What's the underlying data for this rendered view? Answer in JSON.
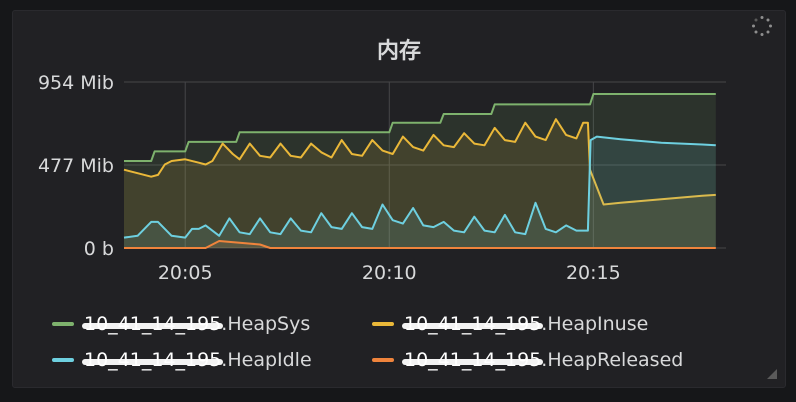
{
  "panel": {
    "title": "内存",
    "loading_icon": "spinner-icon",
    "resize_icon": "resize-handle-icon"
  },
  "chart_data": {
    "type": "area",
    "title": "内存",
    "xlabel": "",
    "ylabel": "",
    "x_ticks": [
      "20:05",
      "20:10",
      "20:15"
    ],
    "y_ticks": [
      "954 Mib",
      "477 Mib",
      "0 b"
    ],
    "y_tick_values": [
      954,
      477,
      0
    ],
    "ylim": [
      0,
      954
    ],
    "xlim": [
      "20:03:30",
      "20:18:15"
    ],
    "grid": true,
    "legend_position": "bottom",
    "series": [
      {
        "name": "HeapSys",
        "host_label": "10_41_14_195",
        "label": ".HeapSys",
        "color": "#7eb26d",
        "x": [
          "20:03:30",
          "20:04:10",
          "20:04:15",
          "20:05:00",
          "20:05:05",
          "20:06:15",
          "20:06:20",
          "20:10:00",
          "20:10:05",
          "20:11:15",
          "20:11:20",
          "20:12:30",
          "20:12:35",
          "20:14:55",
          "20:15:00",
          "20:18:00"
        ],
        "y": [
          500,
          500,
          555,
          555,
          610,
          610,
          665,
          665,
          720,
          720,
          770,
          770,
          825,
          825,
          885,
          885
        ]
      },
      {
        "name": "HeapInuse",
        "host_label": "10_41_14_195",
        "label": ".HeapInuse",
        "color": "#eab839",
        "x": [
          "20:03:30",
          "20:03:50",
          "20:04:10",
          "20:04:20",
          "20:04:30",
          "20:04:40",
          "20:05:00",
          "20:05:20",
          "20:05:30",
          "20:05:40",
          "20:05:55",
          "20:06:10",
          "20:06:20",
          "20:06:35",
          "20:06:50",
          "20:07:05",
          "20:07:20",
          "20:07:35",
          "20:07:50",
          "20:08:05",
          "20:08:20",
          "20:08:35",
          "20:08:50",
          "20:09:05",
          "20:09:20",
          "20:09:35",
          "20:09:50",
          "20:10:05",
          "20:10:20",
          "20:10:35",
          "20:10:50",
          "20:11:05",
          "20:11:20",
          "20:11:35",
          "20:11:50",
          "20:12:05",
          "20:12:20",
          "20:12:35",
          "20:12:50",
          "20:13:05",
          "20:13:20",
          "20:13:35",
          "20:13:50",
          "20:14:05",
          "20:14:20",
          "20:14:35",
          "20:14:45",
          "20:14:52",
          "20:14:55",
          "20:15:05",
          "20:15:15",
          "20:15:40",
          "20:16:10",
          "20:16:40",
          "20:17:10",
          "20:17:40",
          "20:18:00"
        ],
        "y": [
          450,
          430,
          410,
          420,
          480,
          500,
          510,
          490,
          480,
          500,
          600,
          540,
          510,
          600,
          530,
          520,
          600,
          530,
          520,
          600,
          550,
          520,
          620,
          540,
          530,
          620,
          560,
          540,
          640,
          580,
          560,
          650,
          590,
          580,
          660,
          600,
          590,
          690,
          620,
          610,
          720,
          640,
          620,
          740,
          650,
          630,
          720,
          720,
          450,
          350,
          250,
          260,
          270,
          280,
          290,
          300,
          305
        ]
      },
      {
        "name": "HeapIdle",
        "host_label": "10_41_14_195",
        "label": ".HeapIdle",
        "color": "#6ed0e0",
        "x": [
          "20:03:30",
          "20:03:50",
          "20:04:10",
          "20:04:20",
          "20:04:40",
          "20:05:00",
          "20:05:10",
          "20:05:20",
          "20:05:30",
          "20:05:50",
          "20:06:05",
          "20:06:20",
          "20:06:35",
          "20:06:50",
          "20:07:05",
          "20:07:20",
          "20:07:35",
          "20:07:50",
          "20:08:05",
          "20:08:20",
          "20:08:35",
          "20:08:50",
          "20:09:05",
          "20:09:20",
          "20:09:35",
          "20:09:50",
          "20:10:05",
          "20:10:20",
          "20:10:35",
          "20:10:50",
          "20:11:05",
          "20:11:20",
          "20:11:35",
          "20:11:50",
          "20:12:05",
          "20:12:20",
          "20:12:35",
          "20:12:50",
          "20:13:05",
          "20:13:20",
          "20:13:35",
          "20:13:50",
          "20:14:05",
          "20:14:20",
          "20:14:35",
          "20:14:52",
          "20:14:56",
          "20:15:05",
          "20:15:40",
          "20:16:10",
          "20:16:40",
          "20:17:10",
          "20:17:40",
          "20:18:00"
        ],
        "y": [
          60,
          70,
          150,
          150,
          70,
          60,
          110,
          110,
          130,
          70,
          170,
          90,
          80,
          170,
          90,
          80,
          170,
          100,
          90,
          200,
          120,
          110,
          200,
          120,
          110,
          250,
          160,
          140,
          230,
          130,
          120,
          150,
          100,
          90,
          180,
          100,
          90,
          190,
          90,
          80,
          260,
          110,
          90,
          130,
          100,
          100,
          620,
          640,
          625,
          615,
          605,
          600,
          595,
          590
        ]
      },
      {
        "name": "HeapReleased",
        "host_label": "10_41_14_195",
        "label": ".HeapReleased",
        "color": "#ef843c",
        "x": [
          "20:03:30",
          "20:05:30",
          "20:05:50",
          "20:06:05",
          "20:06:35",
          "20:06:50",
          "20:07:05",
          "20:18:00"
        ],
        "y": [
          0,
          0,
          40,
          35,
          25,
          20,
          0,
          0
        ]
      }
    ]
  }
}
